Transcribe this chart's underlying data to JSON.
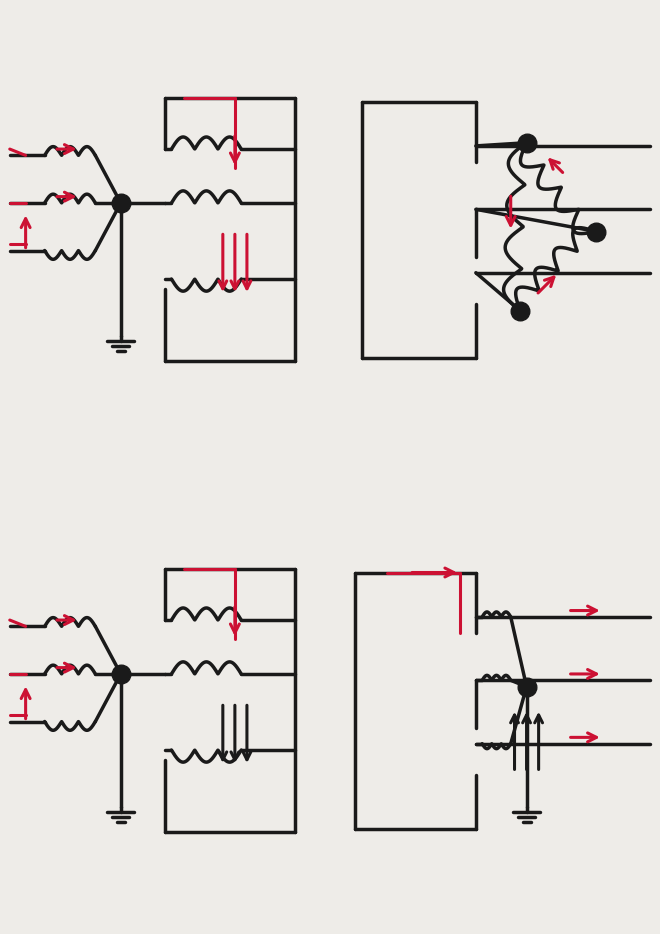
{
  "bg_color": "#eeece8",
  "black": "#1a1a1a",
  "red": "#cc1133",
  "lw": 2.5,
  "lwa": 2.2,
  "dot_s": 180
}
